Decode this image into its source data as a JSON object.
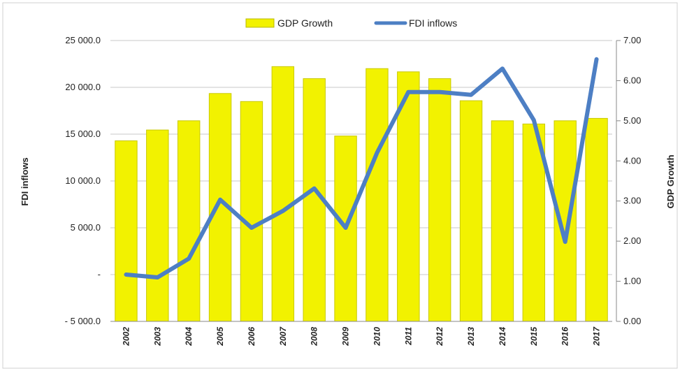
{
  "chart_data": {
    "type": "bar+line",
    "categories": [
      "2002",
      "2003",
      "2004",
      "2005",
      "2006",
      "2007",
      "2008",
      "2009",
      "2010",
      "2011",
      "2012",
      "2013",
      "2014",
      "2015",
      "2016",
      "2017"
    ],
    "series": [
      {
        "name": "GDP Growth",
        "type": "bar",
        "axis": "right",
        "color": "#f2f200",
        "values": [
          4.5,
          4.77,
          5.0,
          5.68,
          5.48,
          6.35,
          6.05,
          4.62,
          6.3,
          6.22,
          6.05,
          5.5,
          5.0,
          4.92,
          5.0,
          5.06
        ]
      },
      {
        "name": "FDI inflows",
        "type": "line",
        "axis": "left",
        "color": "#4d7fc4",
        "values": [
          0,
          -300,
          1700,
          8000,
          5000,
          6800,
          9200,
          5000,
          13000,
          19500,
          19500,
          19200,
          22000,
          16500,
          3500,
          23000
        ]
      }
    ],
    "y_left": {
      "label": "FDI inflows",
      "lim": [
        -5000,
        25000
      ],
      "ticks": [
        -5000,
        0,
        5000,
        10000,
        15000,
        20000,
        25000
      ],
      "tick_labels": [
        "- 5 000.0",
        "-",
        "5 000.0",
        "10 000.0",
        "15 000.0",
        "20 000.0",
        "25 000.0"
      ]
    },
    "y_right": {
      "label": "GDP Growth",
      "lim": [
        0,
        7
      ],
      "ticks": [
        0,
        1,
        2,
        3,
        4,
        5,
        6,
        7
      ],
      "tick_labels": [
        "0.00",
        "1.00",
        "2.00",
        "3.00",
        "4.00",
        "5.00",
        "6.00",
        "7.00"
      ]
    },
    "grid": true,
    "legend": "top-center"
  }
}
